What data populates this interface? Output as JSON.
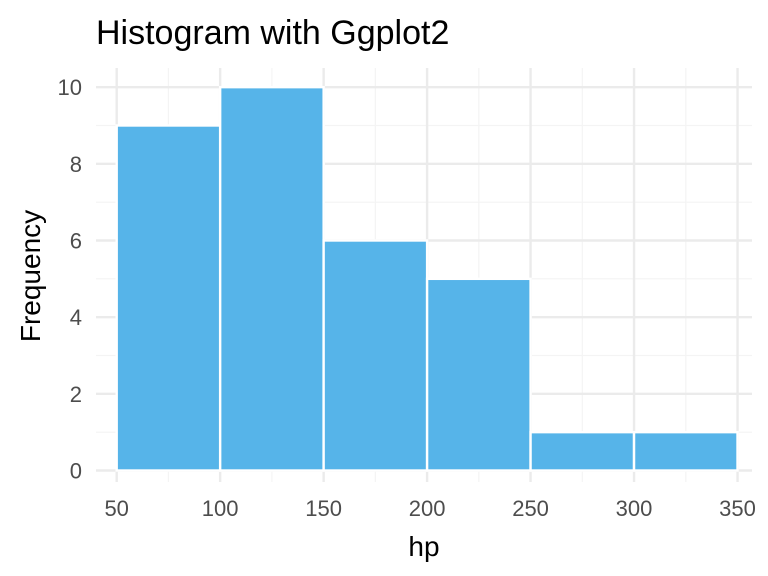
{
  "chart_data": {
    "type": "bar",
    "title": "Histogram with Ggplot2",
    "xlabel": "hp",
    "ylabel": "Frequency",
    "bins": [
      {
        "x0": 50,
        "x1": 100,
        "count": 9
      },
      {
        "x0": 100,
        "x1": 150,
        "count": 10
      },
      {
        "x0": 150,
        "x1": 200,
        "count": 6
      },
      {
        "x0": 200,
        "x1": 250,
        "count": 5
      },
      {
        "x0": 250,
        "x1": 300,
        "count": 1
      },
      {
        "x0": 300,
        "x1": 350,
        "count": 1
      }
    ],
    "xticks": [
      50,
      100,
      150,
      200,
      250,
      300,
      350
    ],
    "yticks": [
      0,
      2,
      4,
      6,
      8,
      10
    ],
    "xlim": [
      40,
      357
    ],
    "ylim": [
      -0.3,
      10.5
    ],
    "grid": true,
    "bar_color": "#56B4E9",
    "bar_edge_color": "#ffffff",
    "grid_color": "#ebebeb"
  }
}
